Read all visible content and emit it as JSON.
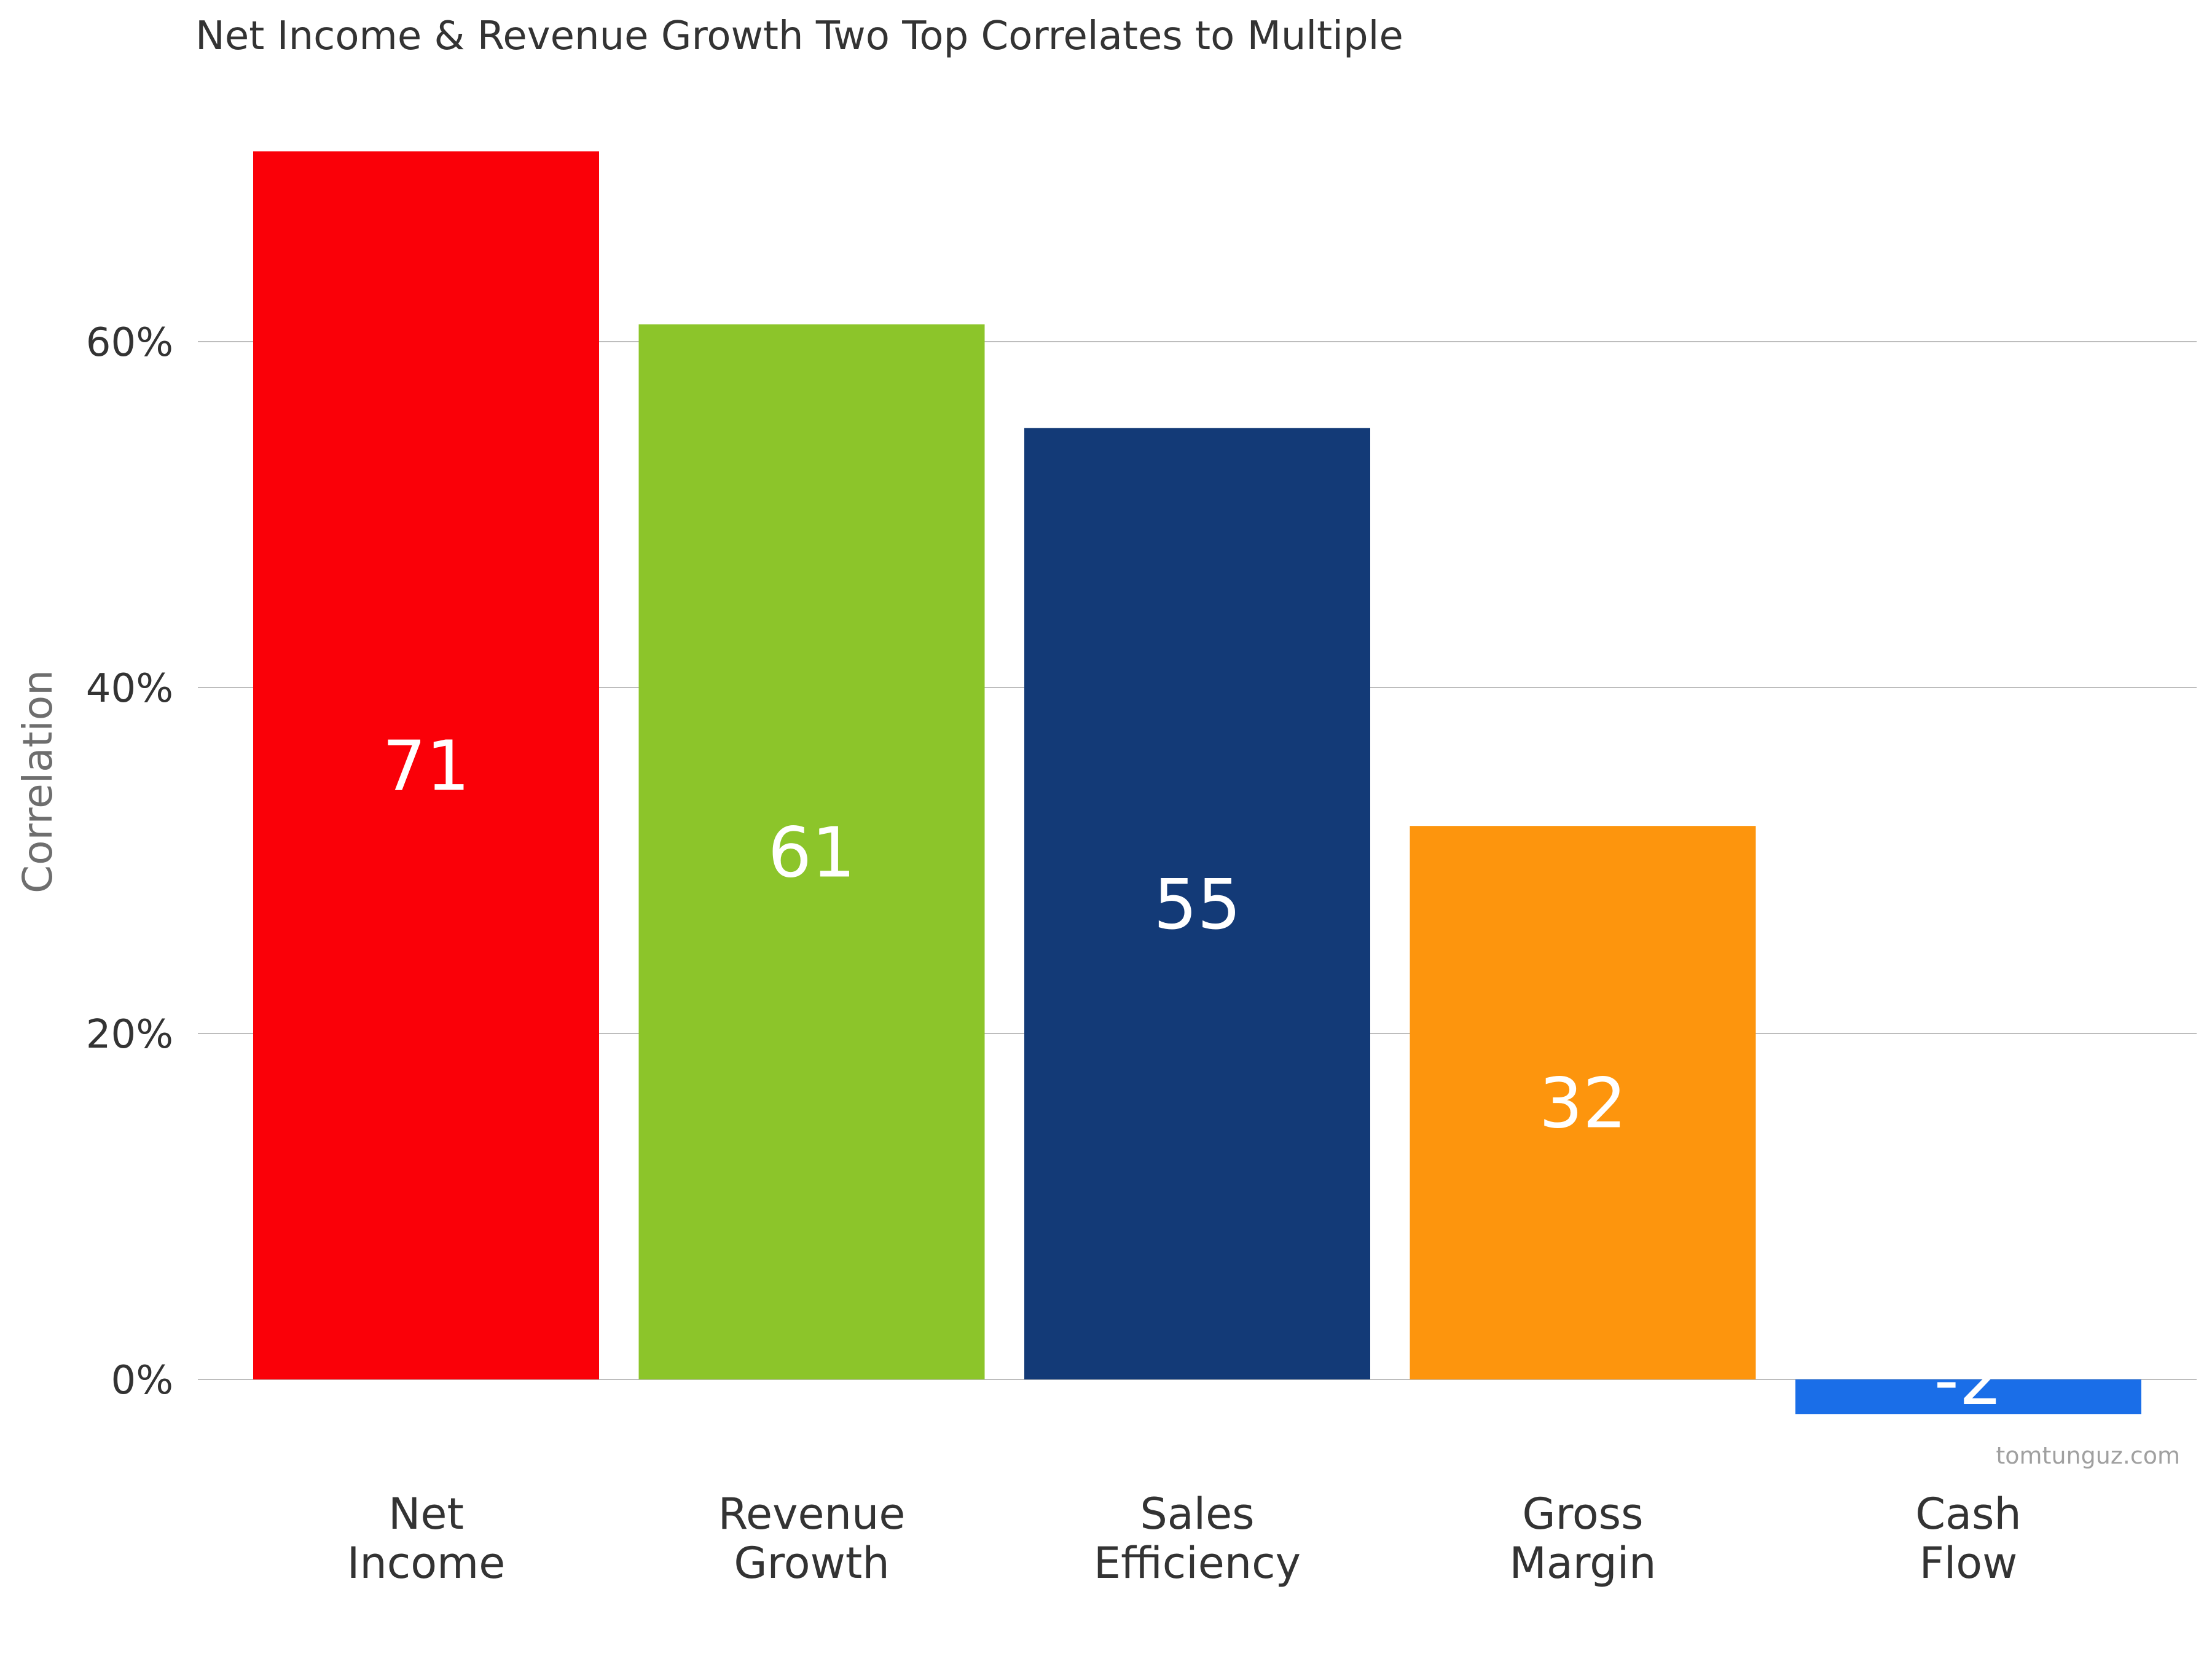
{
  "chart_data": {
    "type": "bar",
    "title": "Net Income & Revenue Growth Two Top Correlates to Multiple",
    "xlabel": "",
    "ylabel": "Correlation",
    "categories": [
      [
        "Net",
        "Income"
      ],
      [
        "Revenue",
        "Growth"
      ],
      [
        "Sales",
        "Efficiency"
      ],
      [
        "Gross",
        "Margin"
      ],
      [
        "Cash",
        "Flow"
      ]
    ],
    "values": [
      71,
      61,
      55,
      32,
      -2
    ],
    "value_labels": [
      "71",
      "61",
      "55",
      "32",
      "-2"
    ],
    "colors": [
      "#fa0008",
      "#8cc52a",
      "#133a77",
      "#fd950d",
      "#1a6ee8"
    ],
    "yticks": [
      0,
      20,
      40,
      60
    ],
    "ytick_labels": [
      "0%",
      "20%",
      "40%",
      "60%"
    ],
    "ylim": [
      -2,
      71
    ],
    "grid": true,
    "legend": "none"
  },
  "credit": "tomtunguz.com"
}
